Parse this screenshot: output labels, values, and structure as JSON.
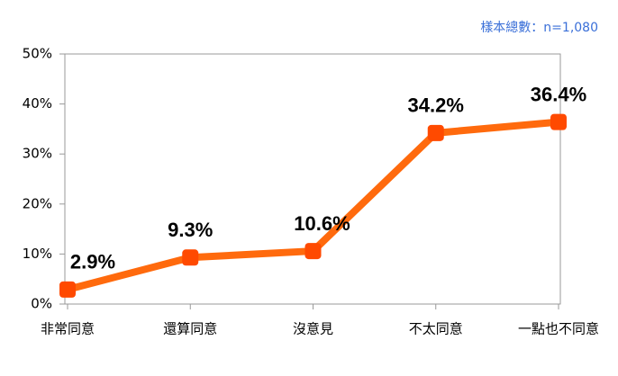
{
  "chart_data": {
    "type": "line",
    "annotation": "樣本總數：n=1,080",
    "categories": [
      "非常同意",
      "還算同意",
      "沒意見",
      "不太同意",
      "一點也不同意"
    ],
    "values": [
      2.9,
      9.3,
      10.6,
      34.2,
      36.4
    ],
    "value_labels": [
      "2.9%",
      "9.3%",
      "10.6%",
      "34.2%",
      "36.4%"
    ],
    "color": "#ff6a0d",
    "marker_color": "#ff4a00",
    "ylim": [
      0,
      50
    ],
    "yticks": [
      {
        "value": 0,
        "label": "0%"
      },
      {
        "value": 10,
        "label": "10%"
      },
      {
        "value": 20,
        "label": "20%"
      },
      {
        "value": 30,
        "label": "30%"
      },
      {
        "value": 40,
        "label": "40%"
      },
      {
        "value": 50,
        "label": "50%"
      }
    ],
    "grid": false
  }
}
